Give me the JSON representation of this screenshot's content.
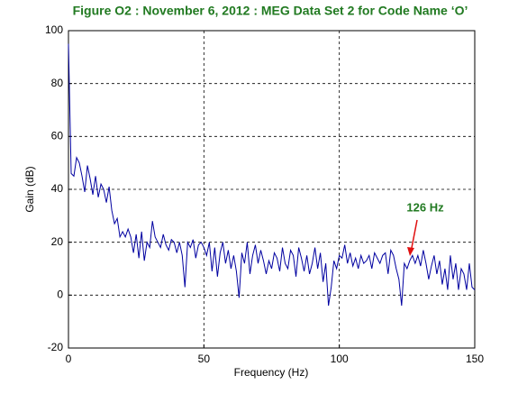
{
  "chart_data": {
    "type": "line",
    "title": "Figure O2 : November 6, 2012 : MEG Data Set 2 for Code Name ‘O’",
    "x_label": "Frequency (Hz)",
    "y_label": "Gain (dB)",
    "annotation": "126 Hz",
    "color": "#0000a0",
    "x": [
      0,
      1,
      2,
      3,
      4,
      5,
      6,
      7,
      8,
      9,
      10,
      11,
      12,
      13,
      14,
      15,
      16,
      17,
      18,
      19,
      20,
      21,
      22,
      23,
      24,
      25,
      26,
      27,
      28,
      29,
      30,
      31,
      32,
      33,
      34,
      35,
      36,
      37,
      38,
      39,
      40,
      41,
      42,
      43,
      44,
      45,
      46,
      47,
      48,
      49,
      50,
      51,
      52,
      53,
      54,
      55,
      56,
      57,
      58,
      59,
      60,
      61,
      62,
      63,
      64,
      65,
      66,
      67,
      68,
      69,
      70,
      71,
      72,
      73,
      74,
      75,
      76,
      77,
      78,
      79,
      80,
      81,
      82,
      83,
      84,
      85,
      86,
      87,
      88,
      89,
      90,
      91,
      92,
      93,
      94,
      95,
      96,
      97,
      98,
      99,
      100,
      101,
      102,
      103,
      104,
      105,
      106,
      107,
      108,
      109,
      110,
      111,
      112,
      113,
      114,
      115,
      116,
      117,
      118,
      119,
      120,
      121,
      122,
      123,
      124,
      125,
      126,
      127,
      128,
      129,
      130,
      131,
      132,
      133,
      134,
      135,
      136,
      137,
      138,
      139,
      140,
      141,
      142,
      143,
      144,
      145,
      146,
      147,
      148,
      149,
      150
    ],
    "values": [
      95,
      46,
      45,
      52,
      50,
      45,
      39,
      49,
      44,
      38,
      45,
      37,
      42,
      40,
      35,
      41,
      32,
      27,
      29,
      22,
      24,
      22,
      25,
      22,
      16,
      23,
      14,
      24,
      13,
      20,
      18,
      28,
      22,
      20,
      18,
      23,
      19,
      17,
      21,
      20,
      16,
      20,
      15,
      3,
      20,
      18,
      21,
      14,
      19,
      20,
      18,
      15,
      20,
      9,
      18,
      7,
      16,
      20,
      12,
      17,
      10,
      15,
      9,
      -1,
      16,
      12,
      20,
      8,
      15,
      19,
      12,
      17,
      13,
      8,
      13,
      10,
      16,
      14,
      9,
      18,
      12,
      10,
      17,
      15,
      7,
      18,
      14,
      9,
      15,
      8,
      12,
      18,
      10,
      16,
      5,
      12,
      -4,
      3,
      13,
      10,
      15,
      14,
      19,
      12,
      16,
      11,
      14,
      10,
      15,
      12,
      13,
      15,
      10,
      16,
      14,
      12,
      15,
      16,
      8,
      17,
      15,
      10,
      6,
      -4,
      12,
      10,
      13,
      15,
      12,
      15,
      11,
      17,
      12,
      6,
      11,
      15,
      8,
      13,
      4,
      10,
      2,
      15,
      6,
      12,
      2,
      10,
      8,
      2,
      12,
      3,
      2
    ],
    "xlim": [
      0,
      150
    ],
    "ylim": [
      -20,
      100
    ],
    "xticks": [
      0,
      50,
      100,
      150
    ],
    "yticks": [
      -20,
      0,
      20,
      40,
      60,
      80,
      100
    ],
    "grid": true
  }
}
